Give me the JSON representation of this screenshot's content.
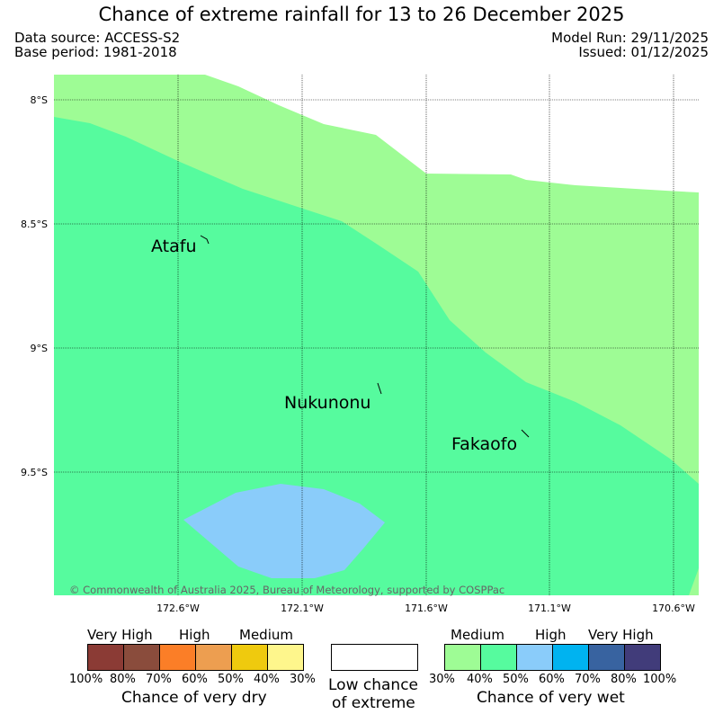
{
  "header": {
    "title": "Chance of extreme rainfall for 13 to 26 December 2025",
    "data_source": "Data source: ACCESS-S2",
    "base_period": "Base period: 1981-2018",
    "model_run": "Model Run: 29/11/2025",
    "issued": "Issued: 01/12/2025"
  },
  "map": {
    "lat_labels": [
      "8°S",
      "8.5°S",
      "9°S",
      "9.5°S"
    ],
    "lon_labels": [
      "172.6°W",
      "172.1°W",
      "171.6°W",
      "171.1°W",
      "170.6°W"
    ],
    "places": [
      "Atafu",
      "Nukunonu",
      "Fakaofo"
    ],
    "copyright": "© Commonwealth of Australia 2025, Bureau of Meteorology, supported by COSPPac",
    "colors": {
      "wet_medium_30_40": "#9efc95",
      "wet_medium_40_50": "#56fb9e",
      "wet_high_50_60": "#8accfa",
      "low_chance": "#ffffff",
      "grid": "#000000"
    }
  },
  "legend": {
    "dry": {
      "categories": [
        "Very High",
        "High",
        "Medium"
      ],
      "colors": [
        "#8b3b35",
        "#8a4c3c",
        "#fb7e27",
        "#ed9e50",
        "#efca0e",
        "#fef68c"
      ],
      "ticks": [
        "100%",
        "80%",
        "70%",
        "60%",
        "50%",
        "40%",
        "30%"
      ],
      "caption": "Chance of very dry"
    },
    "low": {
      "line1": "Low chance",
      "line2": "of extreme"
    },
    "wet": {
      "categories": [
        "Medium",
        "High",
        "Very High"
      ],
      "colors": [
        "#9efc95",
        "#56fb9e",
        "#8accfa",
        "#00b3f0",
        "#3863a0",
        "#413c7a"
      ],
      "ticks": [
        "30%",
        "40%",
        "50%",
        "60%",
        "70%",
        "80%",
        "100%"
      ],
      "caption": "Chance of very wet"
    }
  }
}
